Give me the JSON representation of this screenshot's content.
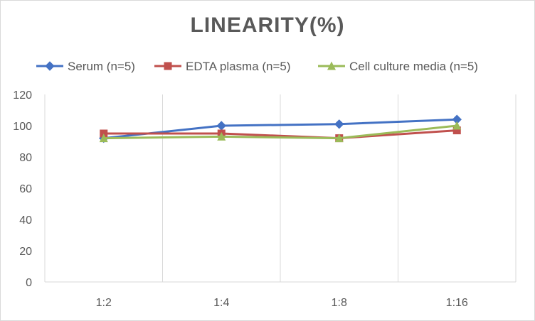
{
  "chart_data": {
    "type": "line",
    "title": "LINEARITY(%)",
    "categories": [
      "1:2",
      "1:4",
      "1:8",
      "1:16"
    ],
    "ylim": [
      0,
      120
    ],
    "yticks": [
      0,
      20,
      40,
      60,
      80,
      100,
      120
    ],
    "grid": "vertical category lines",
    "legend_position": "top",
    "series": [
      {
        "name": "Serum (n=5)",
        "values": [
          92,
          100,
          101,
          104
        ],
        "color": "#4472C4",
        "marker": "diamond"
      },
      {
        "name": "EDTA plasma (n=5)",
        "values": [
          95,
          95,
          92,
          97
        ],
        "color": "#C0504D",
        "marker": "square"
      },
      {
        "name": "Cell culture media (n=5)",
        "values": [
          92,
          93,
          92,
          100
        ],
        "color": "#9BBB59",
        "marker": "triangle"
      }
    ]
  }
}
